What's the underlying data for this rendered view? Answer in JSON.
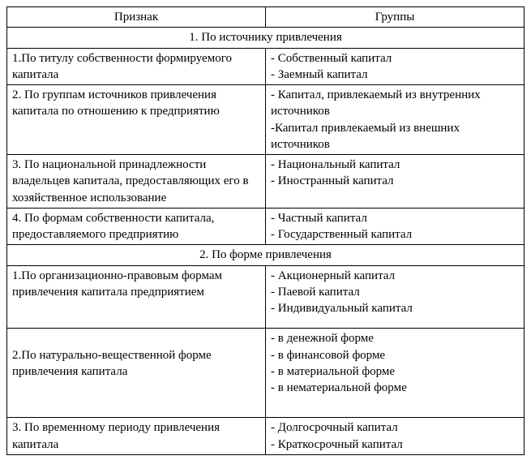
{
  "header": {
    "col1": "Признак",
    "col2": "Группы"
  },
  "sections": [
    {
      "title": "1. По источнику привлечения",
      "rows": [
        {
          "priznak": "1.По титулу собственности формируемого капитала",
          "groups": [
            "- Собственный капитал",
            "- Заемный капитал"
          ]
        },
        {
          "priznak": "2. По группам источников привлечения капитала по отношению к предприятию",
          "groups": [
            "- Капитал, привлекаемый из внутренних    источников",
            " -Капитал привлекаемый из внешних источников"
          ]
        },
        {
          "priznak": "3. По национальной принадлежности владельцев капитала, предоставляющих его в хозяйственное использование",
          "groups": [
            "- Национальный капитал",
            "- Иностранный капитал"
          ]
        },
        {
          "priznak": "4. По формам собственности капитала, предоставляемого предприятию",
          "groups": [
            "- Частный капитал",
            "- Государственный капитал"
          ]
        }
      ]
    },
    {
      "title": "2. По форме привлечения",
      "rows": [
        {
          "priznak": "1.По организационно-правовым формам привлечения капитала предприятием",
          "groups": [
            "- Акционерный капитал",
            "- Паевой капитал",
            " - Индивидуальный капитал"
          ]
        },
        {
          "priznak": "2.По натурально-вещественной форме привлечения капитала",
          "groups": [
            "- в денежной форме",
            "- в финансовой форме",
            "- в материальной форме",
            "- в нематериальной форме"
          ]
        },
        {
          "priznak": "3. По временному периоду привлечения капитала",
          "groups": [
            "- Долгосрочный капитал",
            "- Краткосрочный капитал"
          ]
        }
      ]
    }
  ]
}
